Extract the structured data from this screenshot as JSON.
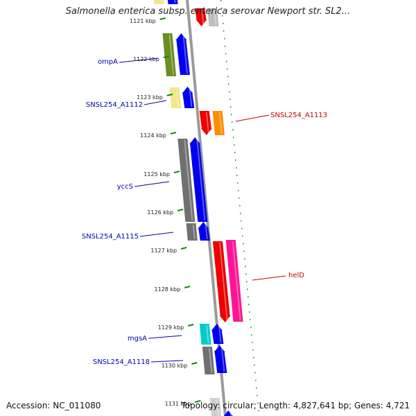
{
  "header": {
    "title": "Salmonella enterica subsp. enterica serovar Newport str. SL2..."
  },
  "footer": {
    "accession": "Accession: NC_011080",
    "summary": "Topology: circular; Length: 4,827,641 bp; Genes: 4,721"
  },
  "ticks": [
    {
      "id": "1121",
      "label": "1121 kbp"
    },
    {
      "id": "1122",
      "label": "1122 kbp"
    },
    {
      "id": "1123",
      "label": "1123 kbp"
    },
    {
      "id": "1124",
      "label": "1124 kbp"
    },
    {
      "id": "1125",
      "label": "1125 kbp"
    },
    {
      "id": "1126",
      "label": "1126 kbp"
    },
    {
      "id": "1127",
      "label": "1127 kbp"
    },
    {
      "id": "1128",
      "label": "1128 kbp"
    },
    {
      "id": "1129",
      "label": "1129 kbp"
    },
    {
      "id": "1130",
      "label": "1130 kbp"
    },
    {
      "id": "1131",
      "label": "1131 kbp"
    }
  ],
  "gene_labels": [
    {
      "id": "ompA",
      "text": "ompA",
      "color": "#0000b0"
    },
    {
      "id": "a1112",
      "text": "SNSL254_A1112",
      "color": "#0000b0"
    },
    {
      "id": "a1113",
      "text": "SNSL254_A1113",
      "color": "#c00000"
    },
    {
      "id": "yccS",
      "text": "yccS",
      "color": "#0000b0"
    },
    {
      "id": "a1115",
      "text": "SNSL254_A1115",
      "color": "#0000b0"
    },
    {
      "id": "helD",
      "text": "helD",
      "color": "#c00000"
    },
    {
      "id": "mgsA",
      "text": "mgsA",
      "color": "#0000b0"
    },
    {
      "id": "a1118",
      "text": "SNSL254_A1118",
      "color": "#0000b0"
    }
  ],
  "colors": {
    "backbone": "#9a9a9a",
    "dots": "#118811",
    "forward_cds": "#0000ee",
    "reverse_cds": "#ee0000",
    "olive": "#6b8e23",
    "khaki": "#f0e68c",
    "gray": "#707070",
    "orange": "#ff8c00",
    "pink": "#ff1493",
    "cyan": "#00cccc"
  }
}
